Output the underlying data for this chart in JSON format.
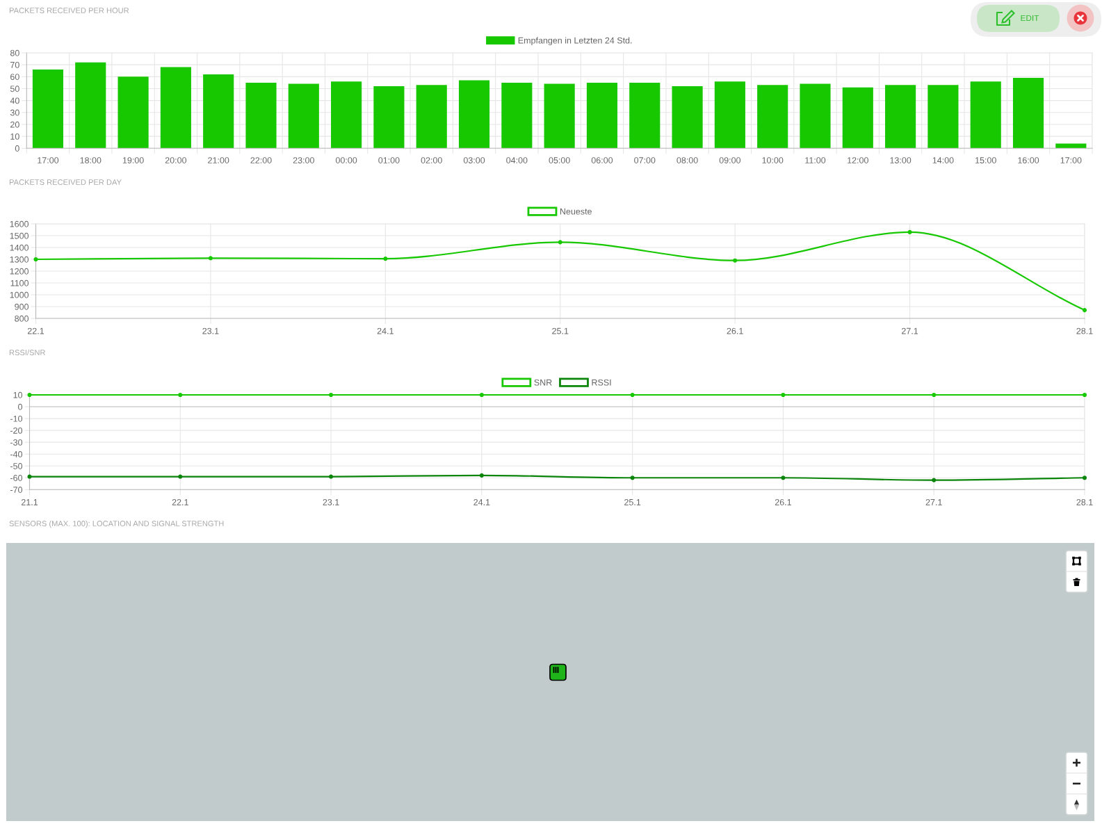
{
  "chart_data": [
    {
      "type": "bar",
      "title": "PACKETS RECEIVED PER HOUR",
      "categories": [
        "17:00",
        "18:00",
        "19:00",
        "20:00",
        "21:00",
        "22:00",
        "23:00",
        "00:00",
        "01:00",
        "02:00",
        "03:00",
        "04:00",
        "05:00",
        "06:00",
        "07:00",
        "08:00",
        "09:00",
        "10:00",
        "11:00",
        "12:00",
        "13:00",
        "14:00",
        "15:00",
        "16:00",
        "17:00"
      ],
      "series": [
        {
          "name": "Empfangen in Letzten 24 Std.",
          "color": "#17c800",
          "values": [
            66,
            72,
            60,
            68,
            62,
            55,
            54,
            56,
            52,
            53,
            57,
            55,
            54,
            55,
            55,
            52,
            56,
            53,
            54,
            51,
            53,
            53,
            56,
            59,
            4
          ]
        }
      ],
      "ylim": [
        0,
        80
      ],
      "yticks": [
        0,
        10,
        20,
        30,
        40,
        50,
        60,
        70,
        80
      ],
      "grid": true,
      "legend": "top",
      "annotations": [
        "EDIT"
      ]
    },
    {
      "type": "line",
      "title": "PACKETS RECEIVED PER DAY",
      "categories": [
        "22.1",
        "23.1",
        "24.1",
        "25.1",
        "26.1",
        "27.1",
        "28.1"
      ],
      "series": [
        {
          "name": "Neueste",
          "color": "#17c800",
          "values": [
            1300,
            1310,
            1305,
            1445,
            1290,
            1530,
            870
          ]
        }
      ],
      "ylim": [
        800,
        1600
      ],
      "yticks": [
        800,
        900,
        1000,
        1100,
        1200,
        1300,
        1400,
        1500,
        1600
      ],
      "grid": true,
      "legend": "top",
      "marker": "circle"
    },
    {
      "type": "line",
      "title": "RSSI/SNR",
      "categories": [
        "21.1",
        "22.1",
        "23.1",
        "24.1",
        "25.1",
        "26.1",
        "27.1",
        "28.1"
      ],
      "series": [
        {
          "name": "SNR",
          "color": "#17c800",
          "values": [
            10,
            10,
            10,
            10,
            10,
            10,
            10,
            10
          ]
        },
        {
          "name": "RSSI",
          "color": "#0a850a",
          "values": [
            -59,
            -59,
            -59,
            -58,
            -60,
            -60,
            -62,
            -60
          ]
        }
      ],
      "ylim": [
        -70,
        10
      ],
      "yticks": [
        -70,
        -60,
        -50,
        -40,
        -30,
        -20,
        -10,
        0,
        10
      ],
      "grid": true,
      "legend": "top",
      "marker": "circle"
    },
    {
      "type": "other",
      "title": "SENSORS (MAX. 100): LOCATION AND SIGNAL STRENGTH"
    }
  ]
}
